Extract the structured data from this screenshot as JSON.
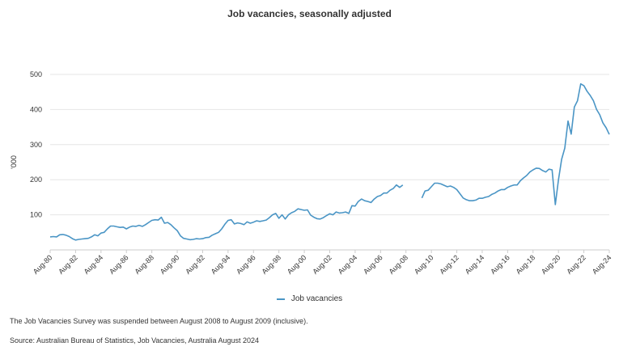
{
  "chart_data": {
    "type": "line",
    "title": "Job vacancies, seasonally adjusted",
    "ylabel": "'000",
    "xlabel": "",
    "ylim": [
      0,
      500
    ],
    "yticks": [
      100,
      200,
      300,
      400,
      500
    ],
    "grid": true,
    "legend_position": "bottom",
    "xtick_labels": [
      "Aug-80",
      "Aug-82",
      "Aug-84",
      "Aug-86",
      "Aug-88",
      "Aug-90",
      "Aug-92",
      "Aug-94",
      "Aug-96",
      "Aug-98",
      "Aug-00",
      "Aug-02",
      "Aug-04",
      "Aug-06",
      "Aug-08",
      "Aug-10",
      "Aug-12",
      "Aug-14",
      "Aug-16",
      "Aug-18",
      "Aug-20",
      "Aug-22",
      "Aug-24"
    ],
    "series": [
      {
        "name": "Job vacancies",
        "color": "#4a95c5",
        "segments": [
          [
            [
              "1980-08",
              37
            ],
            [
              "1980-11",
              38
            ],
            [
              "1981-02",
              37
            ],
            [
              "1981-05",
              43
            ],
            [
              "1981-08",
              44
            ],
            [
              "1981-11",
              42
            ],
            [
              "1982-02",
              38
            ],
            [
              "1982-05",
              32
            ],
            [
              "1982-08",
              28
            ],
            [
              "1982-11",
              30
            ],
            [
              "1983-02",
              31
            ],
            [
              "1983-05",
              32
            ],
            [
              "1983-08",
              33
            ],
            [
              "1983-11",
              37
            ],
            [
              "1984-02",
              43
            ],
            [
              "1984-05",
              40
            ],
            [
              "1984-08",
              48
            ],
            [
              "1984-11",
              50
            ],
            [
              "1985-02",
              60
            ],
            [
              "1985-05",
              68
            ],
            [
              "1985-08",
              68
            ],
            [
              "1985-11",
              66
            ],
            [
              "1986-02",
              64
            ],
            [
              "1986-05",
              65
            ],
            [
              "1986-08",
              60
            ],
            [
              "1986-11",
              65
            ],
            [
              "1987-02",
              68
            ],
            [
              "1987-05",
              67
            ],
            [
              "1987-08",
              70
            ],
            [
              "1987-11",
              67
            ],
            [
              "1988-02",
              72
            ],
            [
              "1988-05",
              78
            ],
            [
              "1988-08",
              84
            ],
            [
              "1988-11",
              86
            ],
            [
              "1989-02",
              85
            ],
            [
              "1989-05",
              93
            ],
            [
              "1989-08",
              76
            ],
            [
              "1989-11",
              78
            ],
            [
              "1990-02",
              72
            ],
            [
              "1990-05",
              63
            ],
            [
              "1990-08",
              55
            ],
            [
              "1990-11",
              40
            ],
            [
              "1991-02",
              33
            ],
            [
              "1991-05",
              31
            ],
            [
              "1991-08",
              29
            ],
            [
              "1991-11",
              30
            ],
            [
              "1992-02",
              32
            ],
            [
              "1992-05",
              31
            ],
            [
              "1992-08",
              32
            ],
            [
              "1992-11",
              35
            ],
            [
              "1993-02",
              36
            ],
            [
              "1993-05",
              42
            ],
            [
              "1993-08",
              46
            ],
            [
              "1993-11",
              50
            ],
            [
              "1994-02",
              60
            ],
            [
              "1994-05",
              73
            ],
            [
              "1994-08",
              84
            ],
            [
              "1994-11",
              86
            ],
            [
              "1995-02",
              74
            ],
            [
              "1995-05",
              77
            ],
            [
              "1995-08",
              75
            ],
            [
              "1995-11",
              72
            ],
            [
              "1996-02",
              80
            ],
            [
              "1996-05",
              76
            ],
            [
              "1996-08",
              79
            ],
            [
              "1996-11",
              83
            ],
            [
              "1997-02",
              81
            ],
            [
              "1997-05",
              83
            ],
            [
              "1997-08",
              85
            ],
            [
              "1997-11",
              92
            ],
            [
              "1998-02",
              100
            ],
            [
              "1998-05",
              104
            ],
            [
              "1998-08",
              90
            ],
            [
              "1998-11",
              100
            ],
            [
              "1999-02",
              88
            ],
            [
              "1999-05",
              100
            ],
            [
              "1999-08",
              106
            ],
            [
              "1999-11",
              110
            ],
            [
              "2000-02",
              117
            ],
            [
              "2000-05",
              115
            ],
            [
              "2000-08",
              113
            ],
            [
              "2000-11",
              114
            ],
            [
              "2001-02",
              99
            ],
            [
              "2001-05",
              93
            ],
            [
              "2001-08",
              89
            ],
            [
              "2001-11",
              88
            ],
            [
              "2002-02",
              92
            ],
            [
              "2002-05",
              98
            ],
            [
              "2002-08",
              103
            ],
            [
              "2002-11",
              100
            ],
            [
              "2003-02",
              108
            ],
            [
              "2003-05",
              105
            ],
            [
              "2003-08",
              106
            ],
            [
              "2003-11",
              108
            ],
            [
              "2004-02",
              104
            ],
            [
              "2004-05",
              126
            ],
            [
              "2004-08",
              125
            ],
            [
              "2004-11",
              138
            ],
            [
              "2005-02",
              145
            ],
            [
              "2005-05",
              140
            ],
            [
              "2005-08",
              138
            ],
            [
              "2005-11",
              135
            ],
            [
              "2006-02",
              145
            ],
            [
              "2006-05",
              152
            ],
            [
              "2006-08",
              155
            ],
            [
              "2006-11",
              162
            ],
            [
              "2007-02",
              162
            ],
            [
              "2007-05",
              170
            ],
            [
              "2007-08",
              175
            ],
            [
              "2007-11",
              185
            ],
            [
              "2008-02",
              178
            ],
            [
              "2008-05",
              185
            ]
          ],
          [
            [
              "2009-11",
              148
            ],
            [
              "2010-02",
              168
            ],
            [
              "2010-05",
              170
            ],
            [
              "2010-08",
              180
            ],
            [
              "2010-11",
              190
            ],
            [
              "2011-02",
              190
            ],
            [
              "2011-05",
              188
            ],
            [
              "2011-08",
              184
            ],
            [
              "2011-11",
              180
            ],
            [
              "2012-02",
              182
            ],
            [
              "2012-05",
              178
            ],
            [
              "2012-08",
              172
            ],
            [
              "2012-11",
              160
            ],
            [
              "2013-02",
              148
            ],
            [
              "2013-05",
              143
            ],
            [
              "2013-08",
              140
            ],
            [
              "2013-11",
              140
            ],
            [
              "2014-02",
              142
            ],
            [
              "2014-05",
              147
            ],
            [
              "2014-08",
              147
            ],
            [
              "2014-11",
              150
            ],
            [
              "2015-02",
              152
            ],
            [
              "2015-05",
              158
            ],
            [
              "2015-08",
              162
            ],
            [
              "2015-11",
              168
            ],
            [
              "2016-02",
              172
            ],
            [
              "2016-05",
              172
            ],
            [
              "2016-08",
              178
            ],
            [
              "2016-11",
              182
            ],
            [
              "2017-02",
              185
            ],
            [
              "2017-05",
              185
            ],
            [
              "2017-08",
              197
            ],
            [
              "2017-11",
              205
            ],
            [
              "2018-02",
              212
            ],
            [
              "2018-05",
              222
            ],
            [
              "2018-08",
              228
            ],
            [
              "2018-11",
              233
            ],
            [
              "2019-02",
              232
            ],
            [
              "2019-05",
              226
            ],
            [
              "2019-08",
              222
            ],
            [
              "2019-11",
              230
            ],
            [
              "2020-02",
              228
            ],
            [
              "2020-05",
              129
            ],
            [
              "2020-08",
              200
            ],
            [
              "2020-11",
              258
            ],
            [
              "2021-02",
              290
            ],
            [
              "2021-05",
              367
            ],
            [
              "2021-08",
              330
            ],
            [
              "2021-11",
              407
            ],
            [
              "2022-02",
              425
            ],
            [
              "2022-05",
              473
            ],
            [
              "2022-08",
              468
            ],
            [
              "2022-11",
              452
            ],
            [
              "2023-02",
              440
            ],
            [
              "2023-05",
              425
            ],
            [
              "2023-08",
              400
            ],
            [
              "2023-11",
              385
            ],
            [
              "2024-02",
              362
            ],
            [
              "2024-05",
              348
            ],
            [
              "2024-08",
              329
            ]
          ]
        ]
      }
    ]
  },
  "notes": {
    "line1": "The Job Vacancies Survey was suspended between August 2008 to August 2009 (inclusive).",
    "line2": "Source: Australian Bureau of Statistics, Job Vacancies, Australia August 2024"
  }
}
